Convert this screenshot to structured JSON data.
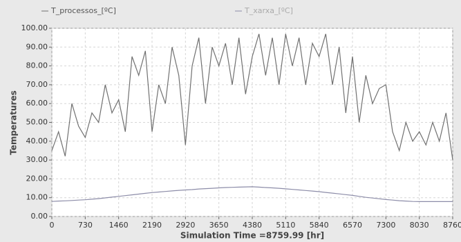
{
  "chart_data": {
    "type": "line",
    "y_label": "Temperatures",
    "x_label": "Simulation Time =8759.99 [hr]",
    "x": [
      0,
      146,
      292,
      438,
      584,
      730,
      876,
      1022,
      1168,
      1314,
      1460,
      1606,
      1752,
      1898,
      2044,
      2190,
      2336,
      2482,
      2628,
      2774,
      2920,
      3066,
      3212,
      3358,
      3504,
      3650,
      3796,
      3942,
      4088,
      4234,
      4380,
      4526,
      4672,
      4818,
      4964,
      5110,
      5256,
      5402,
      5548,
      5694,
      5840,
      5986,
      6132,
      6278,
      6424,
      6570,
      6716,
      6862,
      7008,
      7154,
      7300,
      7446,
      7592,
      7738,
      7884,
      8030,
      8176,
      8322,
      8468,
      8614,
      8760
    ],
    "series": [
      {
        "name": "T_processos_[ºC]",
        "color": "#707070",
        "values": [
          35,
          45,
          32,
          60,
          48,
          42,
          55,
          50,
          70,
          55,
          62,
          45,
          85,
          75,
          88,
          45,
          70,
          60,
          90,
          75,
          38,
          80,
          95,
          60,
          90,
          80,
          92,
          70,
          95,
          65,
          85,
          97,
          75,
          95,
          70,
          97,
          80,
          95,
          70,
          92,
          85,
          97,
          70,
          90,
          55,
          85,
          50,
          75,
          60,
          68,
          70,
          45,
          35,
          50,
          40,
          45,
          38,
          50,
          40,
          55,
          30
        ]
      },
      {
        "name": "T_xarxa_[ºC]",
        "color": "#8c8ca8",
        "values": [
          8.0,
          8.2,
          8.3,
          8.5,
          8.7,
          8.9,
          9.2,
          9.5,
          9.9,
          10.3,
          10.7,
          11.1,
          11.5,
          11.9,
          12.3,
          12.7,
          13.0,
          13.3,
          13.6,
          13.9,
          14.1,
          14.3,
          14.6,
          14.8,
          15.0,
          15.2,
          15.4,
          15.5,
          15.6,
          15.7,
          15.8,
          15.6,
          15.4,
          15.2,
          15.0,
          14.7,
          14.4,
          14.1,
          13.8,
          13.5,
          13.2,
          12.8,
          12.4,
          12.0,
          11.6,
          11.2,
          10.7,
          10.2,
          9.8,
          9.4,
          9.0,
          8.7,
          8.4,
          8.2,
          8.0,
          7.9,
          7.9,
          7.9,
          7.9,
          7.9,
          7.9
        ]
      }
    ],
    "xlim": [
      0,
      8760
    ],
    "xticks": [
      0,
      730,
      1460,
      2190,
      2920,
      3650,
      4380,
      5110,
      5840,
      6570,
      7300,
      8030,
      8760
    ],
    "ylim": [
      0,
      100
    ],
    "yticks": [
      {
        "value": 0,
        "label": "0.00"
      },
      {
        "value": 10,
        "label": "10.00"
      },
      {
        "value": 20,
        "label": "20.00"
      },
      {
        "value": 30,
        "label": "30.00"
      },
      {
        "value": 40,
        "label": "40.00"
      },
      {
        "value": 50,
        "label": "50.00"
      },
      {
        "value": 60,
        "label": "60.00"
      },
      {
        "value": 70,
        "label": "70.00"
      },
      {
        "value": 80,
        "label": "80.00"
      },
      {
        "value": 90,
        "label": "90.00"
      },
      {
        "value": 100,
        "label": "100.00"
      }
    ],
    "grid": true
  }
}
